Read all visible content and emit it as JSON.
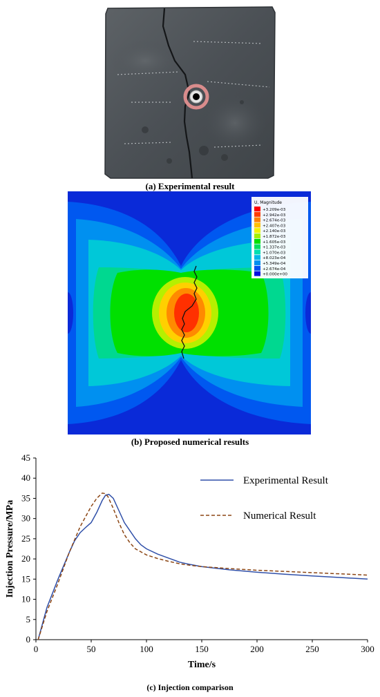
{
  "captions": {
    "a": "(a) Experimental result",
    "b": "(b) Proposed numerical results",
    "c": "(c) Injection comparison"
  },
  "legend_fem": {
    "title": "U, Magnitude",
    "entries": [
      "+3.209e-03",
      "+2.942e-03",
      "+2.674e-03",
      "+2.407e-03",
      "+2.140e-03",
      "+1.872e-03",
      "+1.605e-03",
      "+1.337e-03",
      "+1.070e-03",
      "+8.023e-04",
      "+5.349e-04",
      "+2.674e-04",
      "+0.000e+00"
    ],
    "colors": [
      "#ff0000",
      "#ff3c00",
      "#ff8000",
      "#ffbf00",
      "#f2f200",
      "#a6f000",
      "#00e000",
      "#00e060",
      "#00e0b0",
      "#00b8e8",
      "#0090f0",
      "#0050f0",
      "#0010e0"
    ]
  },
  "chart_data": {
    "type": "line",
    "xlabel": "Time/s",
    "ylabel": "Injection Pressure/MPa",
    "xlim": [
      0,
      300
    ],
    "ylim": [
      0,
      45
    ],
    "xticks": [
      0,
      50,
      100,
      150,
      200,
      250,
      300
    ],
    "yticks": [
      0,
      5,
      10,
      15,
      20,
      25,
      30,
      35,
      40,
      45
    ],
    "grid": false,
    "legend_position": "top-right",
    "series": [
      {
        "name": "Experimental Result",
        "color": "#2f4fa8",
        "style": "solid",
        "x": [
          2,
          10,
          20,
          30,
          35,
          40,
          45,
          50,
          55,
          60,
          63,
          66,
          70,
          75,
          80,
          90,
          95,
          100,
          110,
          120,
          130,
          140,
          150,
          175,
          200,
          225,
          250,
          275,
          300
        ],
        "y": [
          0,
          8,
          15,
          21.5,
          24.5,
          26.5,
          27.8,
          29,
          31.5,
          34.5,
          35.8,
          36,
          35,
          32,
          29,
          25,
          23.5,
          22.5,
          21.2,
          20.2,
          19.2,
          18.6,
          18.1,
          17.3,
          16.7,
          16.2,
          15.8,
          15.4,
          15
        ]
      },
      {
        "name": "Numerical Result",
        "color": "#8b4513",
        "style": "dashed",
        "x": [
          2,
          10,
          20,
          30,
          40,
          50,
          55,
          60,
          62,
          65,
          70,
          75,
          80,
          85,
          90,
          100,
          110,
          120,
          130,
          140,
          150,
          175,
          200,
          225,
          250,
          275,
          300
        ],
        "y": [
          0,
          7,
          14,
          21.5,
          28,
          33,
          35,
          36.3,
          36.2,
          35.5,
          32.5,
          29,
          26,
          24,
          22.5,
          21,
          20.1,
          19.4,
          18.8,
          18.4,
          18.1,
          17.6,
          17.2,
          16.9,
          16.6,
          16.3,
          16
        ]
      }
    ]
  }
}
